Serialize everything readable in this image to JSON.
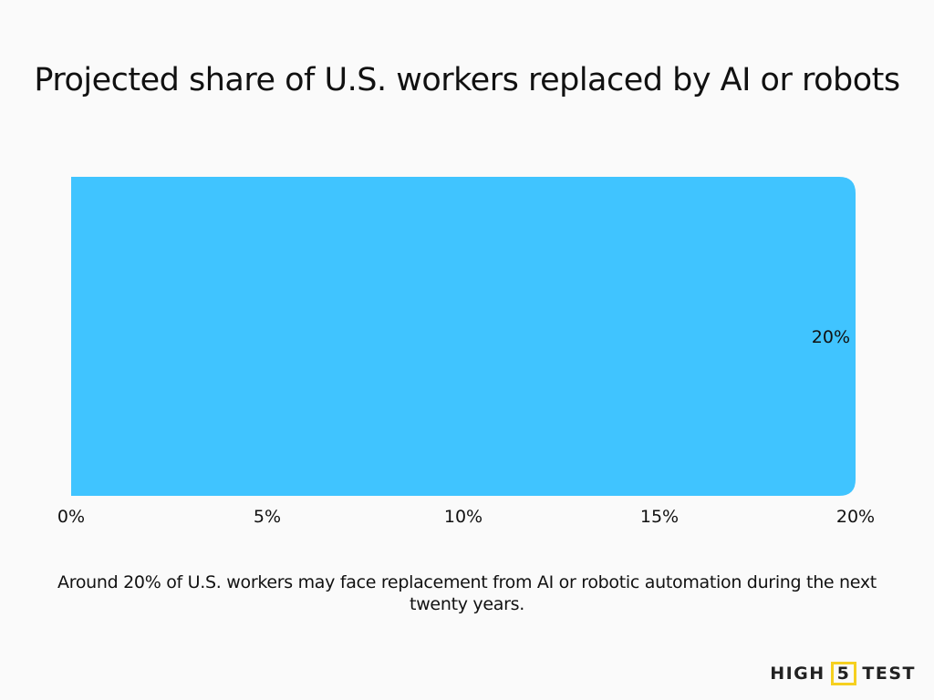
{
  "title": "Projected share of U.S. workers replaced by AI or robots",
  "caption": "Around 20% of U.S. workers may face replacement from AI or robotic automation during the next twenty years.",
  "logo": {
    "left": "HIGH",
    "mid": "5",
    "right": "TEST",
    "accent": "#f5d020"
  },
  "chart_data": {
    "type": "bar",
    "orientation": "horizontal",
    "categories": [
      ""
    ],
    "values": [
      20
    ],
    "data_labels": [
      "20%"
    ],
    "xlim": [
      0,
      20
    ],
    "xticks": [
      0,
      5,
      10,
      15,
      20
    ],
    "xtick_labels": [
      "0%",
      "5%",
      "10%",
      "15%",
      "20%"
    ],
    "grid": false,
    "bar_color": "#40c4ff"
  }
}
